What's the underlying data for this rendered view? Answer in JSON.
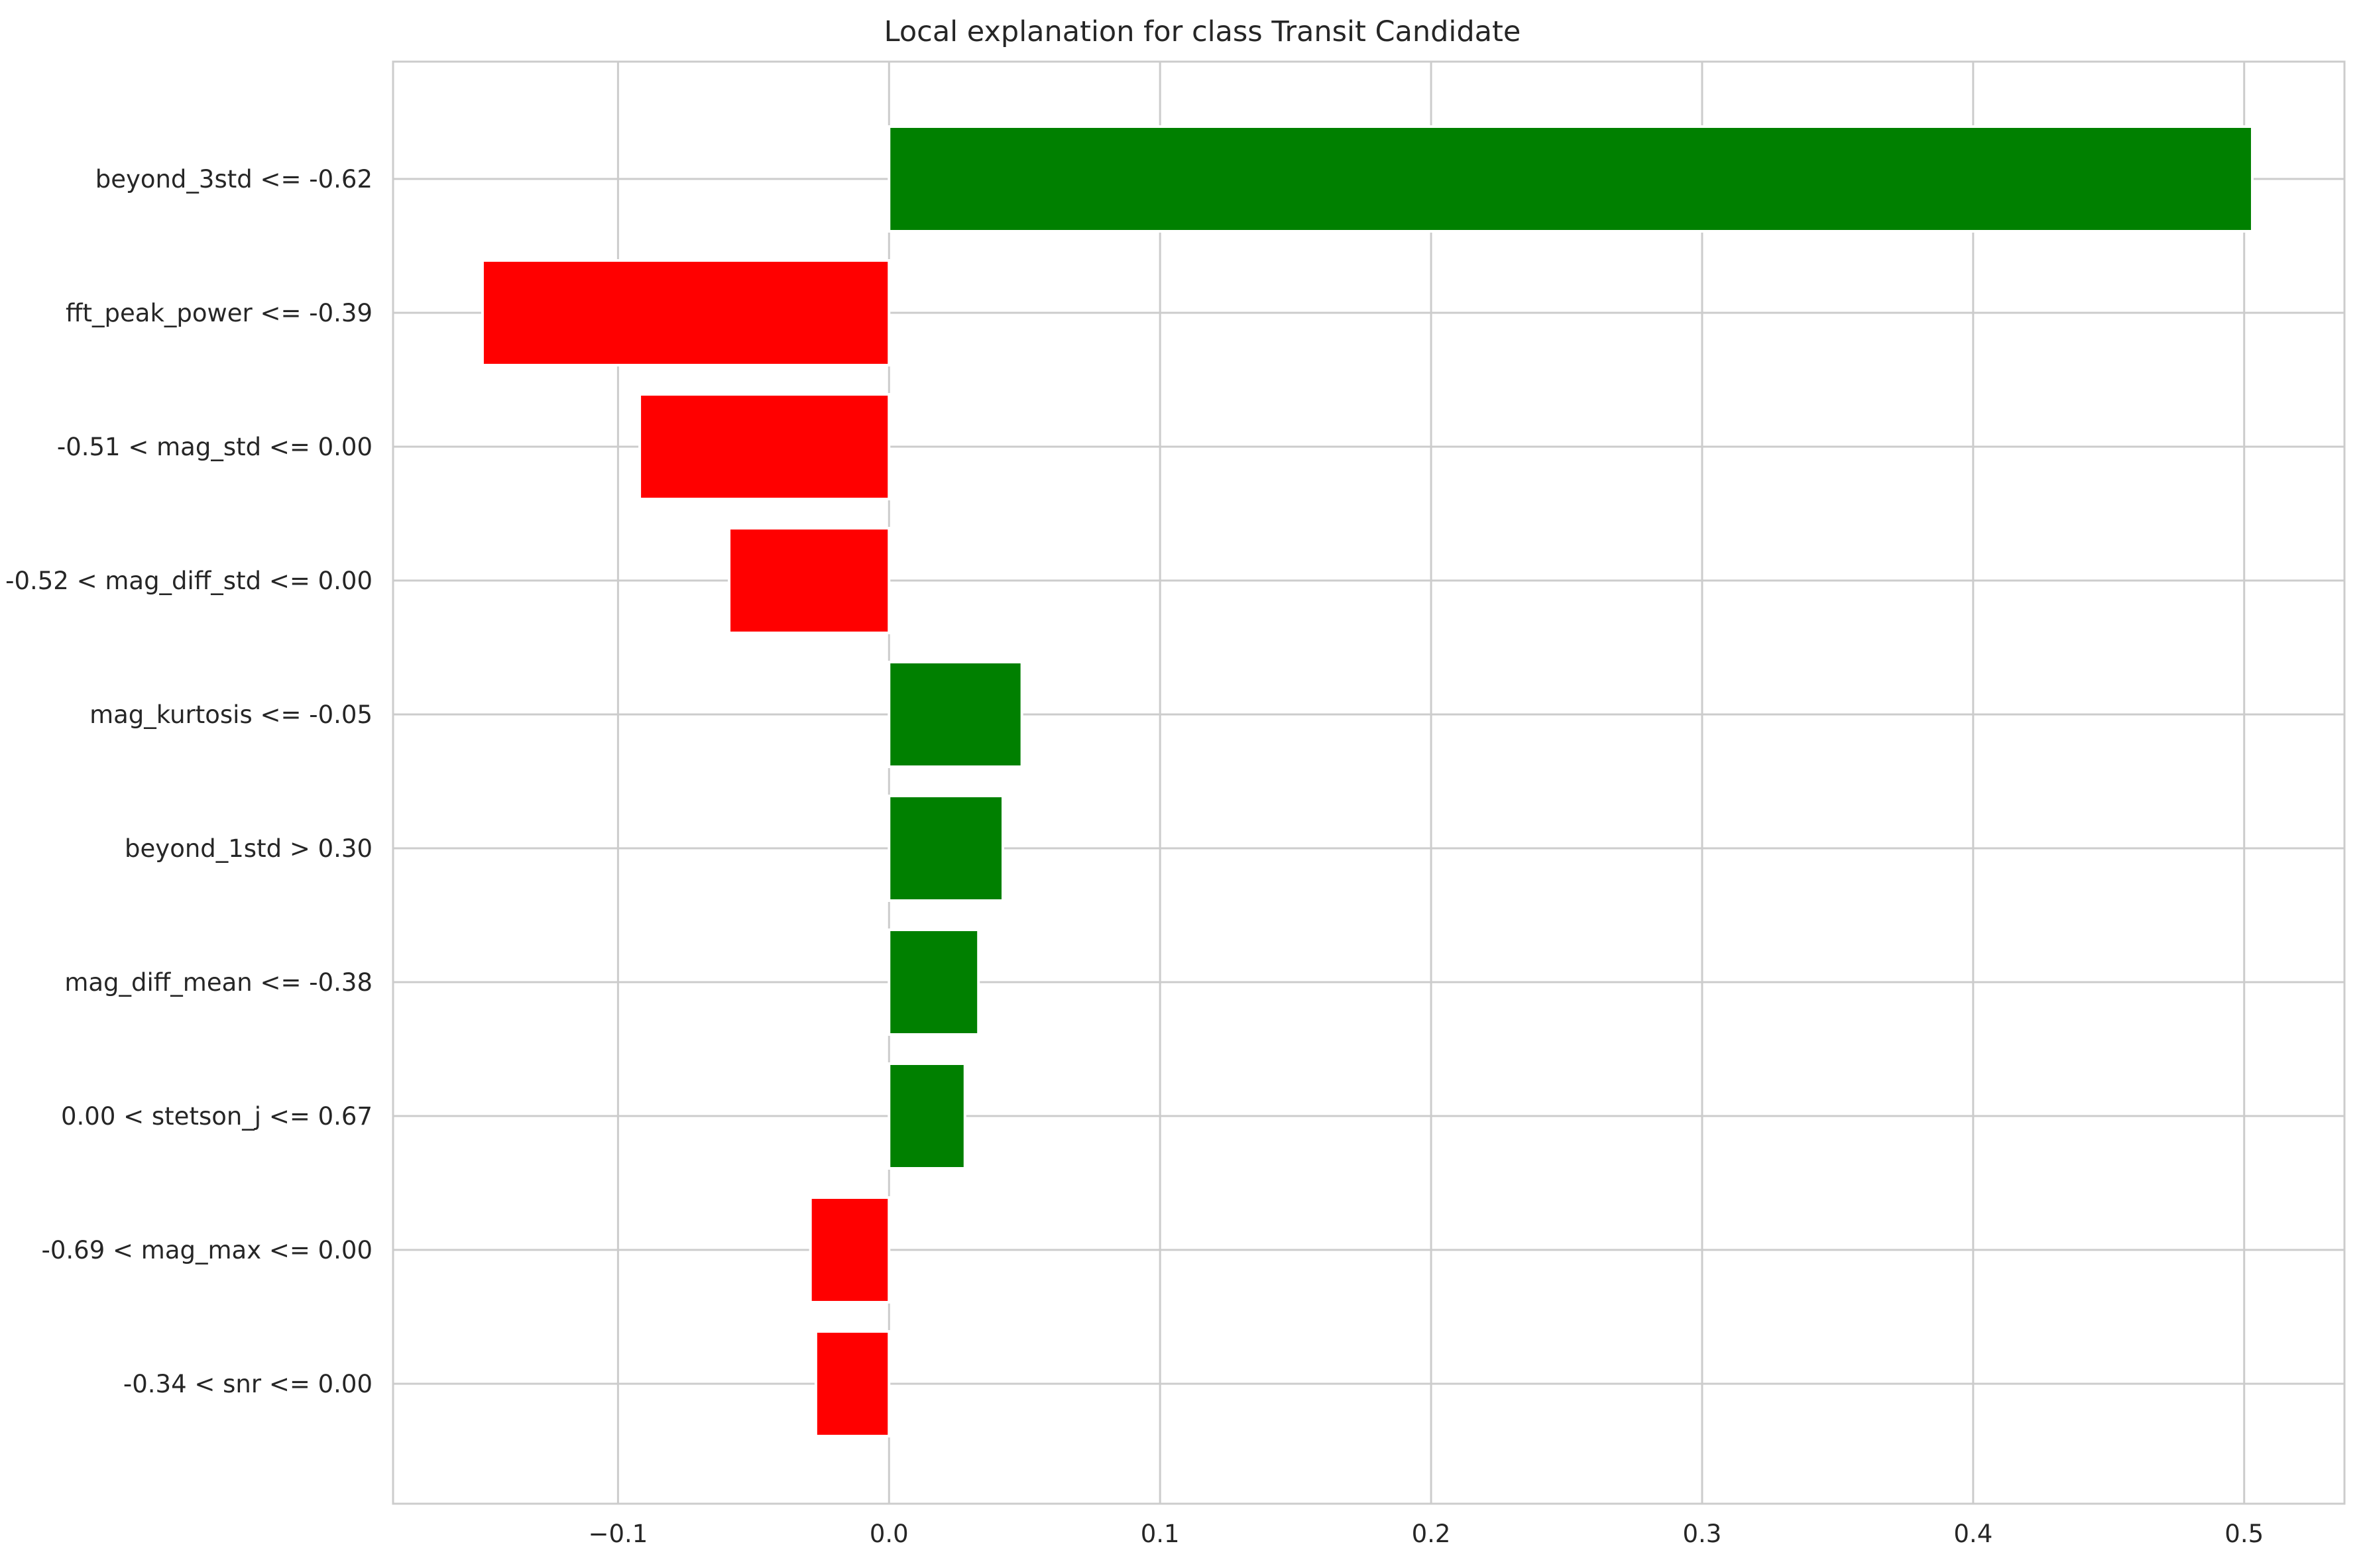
{
  "chart_data": {
    "type": "bar",
    "orientation": "horizontal",
    "title": "Local explanation for class Transit Candidate",
    "xlabel": "",
    "ylabel": "",
    "xlim": [
      -0.183,
      0.537
    ],
    "grid": true,
    "xticks": [
      -0.1,
      0.0,
      0.1,
      0.2,
      0.3,
      0.4,
      0.5
    ],
    "xtick_labels": [
      "−0.1",
      "0.0",
      "0.1",
      "0.2",
      "0.3",
      "0.4",
      "0.5"
    ],
    "categories": [
      "beyond_3std <= -0.62",
      "fft_peak_power <= -0.39",
      "-0.51 < mag_std <= 0.00",
      "-0.52 < mag_diff_std <= 0.00",
      "mag_kurtosis <= -0.05",
      "beyond_1std > 0.30",
      "mag_diff_mean <= -0.38",
      "0.00 < stetson_j <= 0.67",
      "-0.69 < mag_max <= 0.00",
      "-0.34 < snr <= 0.00"
    ],
    "values": [
      0.503,
      -0.15,
      -0.092,
      -0.059,
      0.049,
      0.042,
      0.033,
      0.028,
      -0.029,
      -0.027
    ],
    "colors": {
      "positive": "#008000",
      "negative": "#ff0000"
    }
  }
}
